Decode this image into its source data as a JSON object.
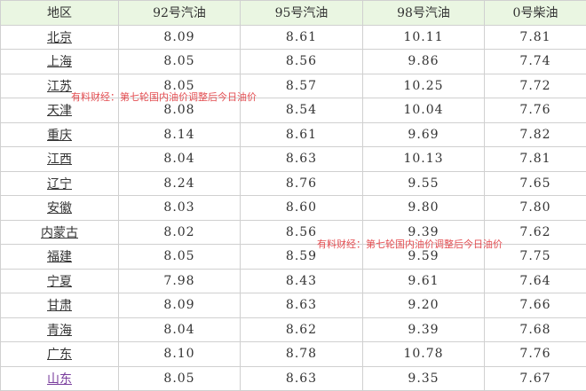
{
  "headers": [
    "地区",
    "92号汽油",
    "95号汽油",
    "98号汽油",
    "0号柴油"
  ],
  "rows": [
    [
      "北京",
      "8.09",
      "8.61",
      "10.11",
      "7.81"
    ],
    [
      "上海",
      "8.05",
      "8.56",
      "9.86",
      "7.74"
    ],
    [
      "江苏",
      "8.05",
      "8.57",
      "10.25",
      "7.72"
    ],
    [
      "天津",
      "8.08",
      "8.54",
      "10.04",
      "7.76"
    ],
    [
      "重庆",
      "8.14",
      "8.61",
      "9.69",
      "7.82"
    ],
    [
      "江西",
      "8.04",
      "8.63",
      "10.13",
      "7.81"
    ],
    [
      "辽宁",
      "8.24",
      "8.76",
      "9.55",
      "7.65"
    ],
    [
      "安徽",
      "8.03",
      "8.60",
      "9.80",
      "7.80"
    ],
    [
      "内蒙古",
      "8.02",
      "8.56",
      "9.39",
      "7.62"
    ],
    [
      "福建",
      "8.05",
      "8.59",
      "9.59",
      "7.75"
    ],
    [
      "宁夏",
      "7.98",
      "8.43",
      "9.61",
      "7.64"
    ],
    [
      "甘肃",
      "8.09",
      "8.63",
      "9.20",
      "7.66"
    ],
    [
      "青海",
      "8.04",
      "8.62",
      "9.39",
      "7.68"
    ],
    [
      "广东",
      "8.10",
      "8.78",
      "10.78",
      "7.76"
    ],
    [
      "山东",
      "8.05",
      "8.63",
      "9.35",
      "7.67"
    ]
  ],
  "watermarks": [
    "有料财经：第七轮国内油价调整后今日油价",
    "有料财经：第七轮国内油价调整后今日油价"
  ],
  "colors": {
    "header_bg": "#eaf6e2",
    "watermark": "#e0393e",
    "visited_link": "#7a3e9d"
  }
}
